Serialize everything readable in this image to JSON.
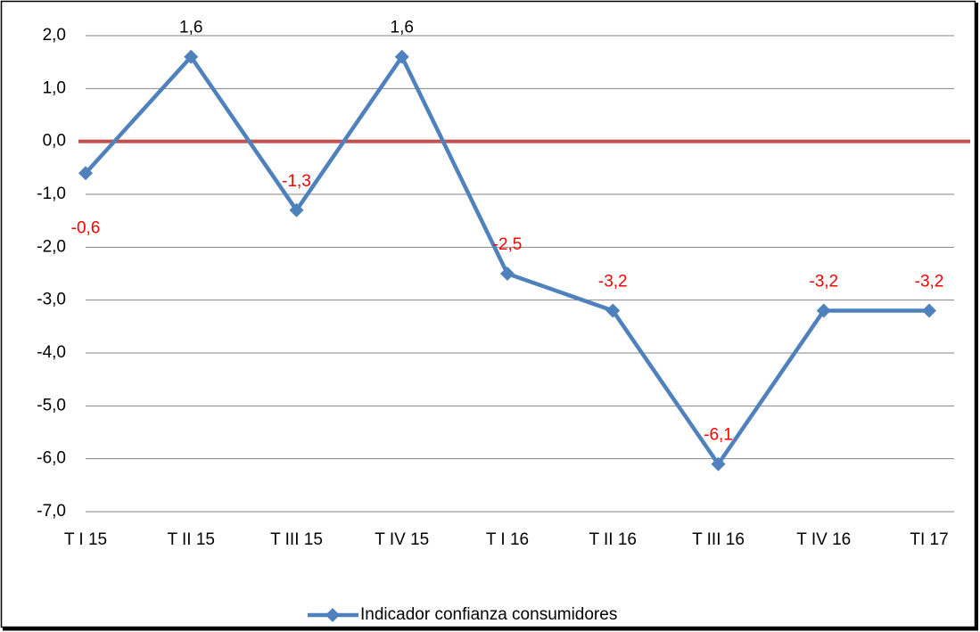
{
  "chart_data": {
    "type": "line",
    "categories": [
      "T I 15",
      "T II 15",
      "T III 15",
      "T IV 15",
      "T I 16",
      "T II 16",
      "T III 16",
      "T IV 16",
      "TI 17"
    ],
    "series": [
      {
        "name": "Indicador confianza consumidores",
        "color": "#4f81bd",
        "values": [
          -0.6,
          1.6,
          -1.3,
          1.6,
          -2.5,
          -3.2,
          -6.1,
          -3.2,
          -3.2
        ],
        "value_labels": [
          "-0,6",
          "1,6",
          "-1,3",
          "1,6",
          "-2,5",
          "-3,2",
          "-6,1",
          "-3,2",
          "-3,2"
        ]
      }
    ],
    "reference_line": {
      "value": 0,
      "color": "#c0504d"
    },
    "ylim": [
      -7,
      2
    ],
    "yticks": [
      {
        "value": -7,
        "label": "-7,0"
      },
      {
        "value": -6,
        "label": "-6,0"
      },
      {
        "value": -5,
        "label": "-5,0"
      },
      {
        "value": -4,
        "label": "-4,0"
      },
      {
        "value": -3,
        "label": "-3,0"
      },
      {
        "value": -2,
        "label": "-2,0"
      },
      {
        "value": -1,
        "label": "-1,0"
      },
      {
        "value": 0,
        "label": "0,0"
      },
      {
        "value": 1,
        "label": "1,0"
      },
      {
        "value": 2,
        "label": "2,0"
      }
    ],
    "grid": true,
    "legend": "bottom"
  }
}
